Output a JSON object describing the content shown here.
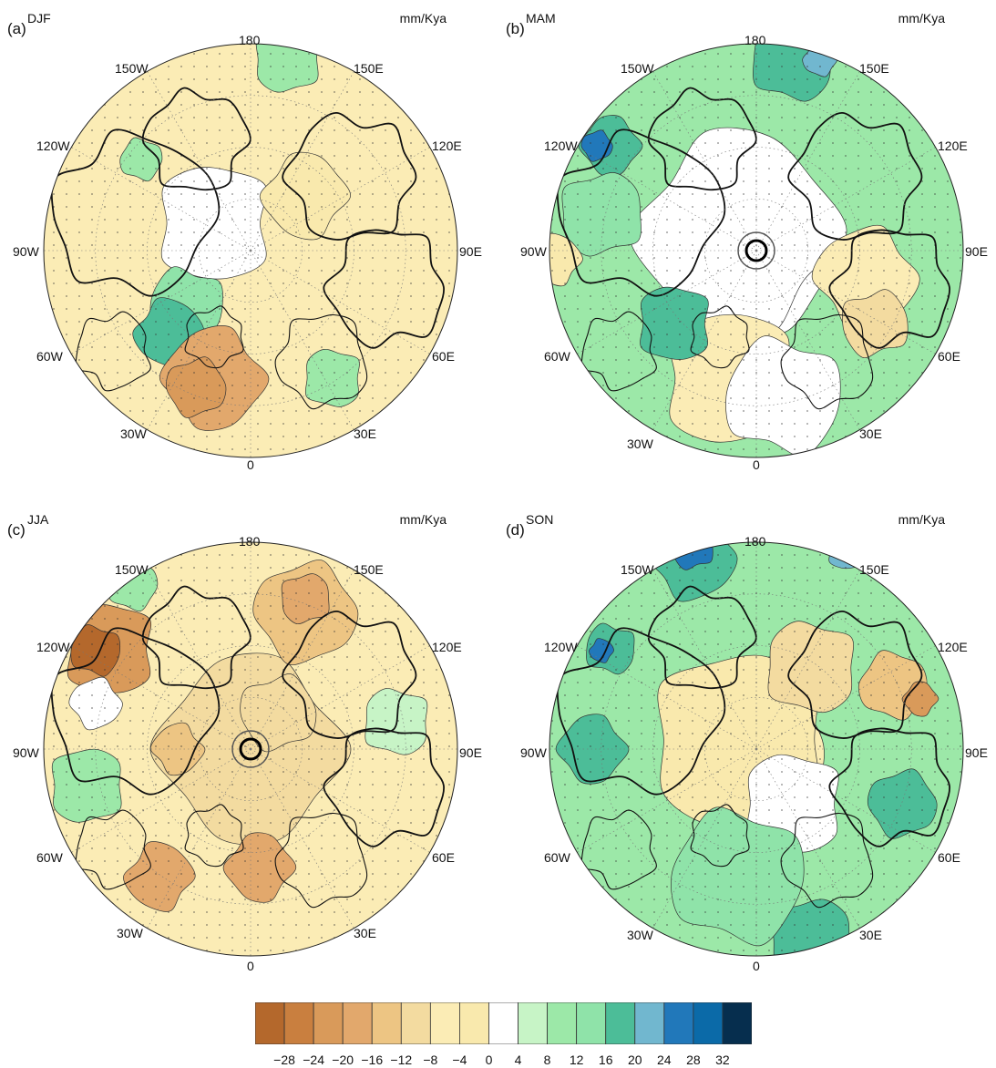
{
  "panels": [
    {
      "label": "(a)",
      "season": "DJF",
      "unit": "mm/Kya",
      "prevailing": "dry",
      "longitudes": {
        "top": "180",
        "tl": "150W",
        "tr": "150E",
        "ul": "120W",
        "ur": "120E",
        "l": "90W",
        "r": "90E",
        "ll": "60W",
        "lr": "60E",
        "bl": "30W",
        "br": "30E",
        "bottom": "0"
      }
    },
    {
      "label": "(b)",
      "season": "MAM",
      "unit": "mm/Kya",
      "prevailing": "mixed",
      "longitudes": {
        "top": "180",
        "tl": "150W",
        "tr": "150E",
        "ul": "120W",
        "ur": "120E",
        "l": "90W",
        "r": "90E",
        "ll": "60W",
        "lr": "60E",
        "bl": "30W",
        "br": "30E",
        "bottom": "0"
      }
    },
    {
      "label": "(c)",
      "season": "JJA",
      "unit": "mm/Kya",
      "prevailing": "dry",
      "longitudes": {
        "top": "180",
        "tl": "150W",
        "tr": "150E",
        "ul": "120W",
        "ur": "120E",
        "l": "90W",
        "r": "90E",
        "ll": "60W",
        "lr": "60E",
        "bl": "30W",
        "br": "30E",
        "bottom": "0"
      }
    },
    {
      "label": "(d)",
      "season": "SON",
      "unit": "mm/Kya",
      "prevailing": "wet",
      "longitudes": {
        "top": "180",
        "tl": "150W",
        "tr": "150E",
        "ul": "120W",
        "ur": "120E",
        "l": "90W",
        "r": "90E",
        "ll": "60W",
        "lr": "60E",
        "bl": "30W",
        "br": "30E",
        "bottom": "0"
      }
    }
  ],
  "colorbar": {
    "colors": [
      "#b4682c",
      "#c97f3f",
      "#d99a5a",
      "#e2a86c",
      "#edc583",
      "#f3dba0",
      "#fbecb5",
      "#f9e9ad",
      "#ffffff",
      "#c7f4c6",
      "#9ce8a8",
      "#8fe3a9",
      "#4cbd98",
      "#71b7cf",
      "#2178ba",
      "#0b6aa8",
      "#062e4e"
    ],
    "ticks": [
      "−28",
      "−24",
      "−20",
      "−16",
      "−12",
      "−8",
      "−4",
      "0",
      "4",
      "8",
      "12",
      "16",
      "20",
      "24",
      "28",
      "32"
    ]
  }
}
